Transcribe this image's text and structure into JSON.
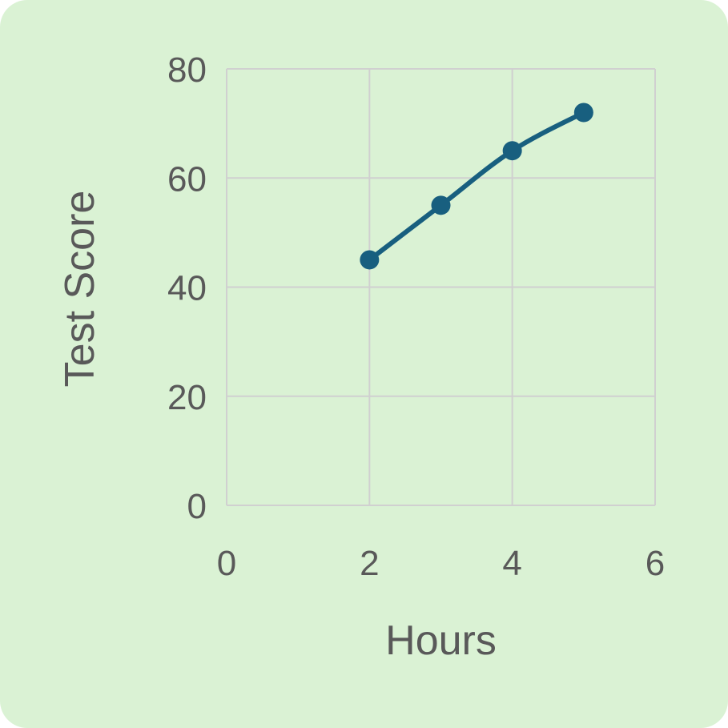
{
  "colors": {
    "background": "#daf2d4",
    "grid": "#d0d0d0",
    "text": "#595959",
    "series": "#185f7f"
  },
  "chart_data": {
    "type": "line",
    "title": "",
    "xlabel": "Hours",
    "ylabel": "Test Score",
    "xlim": [
      0,
      6
    ],
    "ylim": [
      0,
      80
    ],
    "xticks": [
      0,
      2,
      4,
      6
    ],
    "yticks": [
      0,
      20,
      40,
      60,
      80
    ],
    "grid": true,
    "legend": "none",
    "series": [
      {
        "x": [
          2,
          3,
          4,
          5
        ],
        "y": [
          45,
          55,
          65,
          72
        ]
      }
    ]
  }
}
